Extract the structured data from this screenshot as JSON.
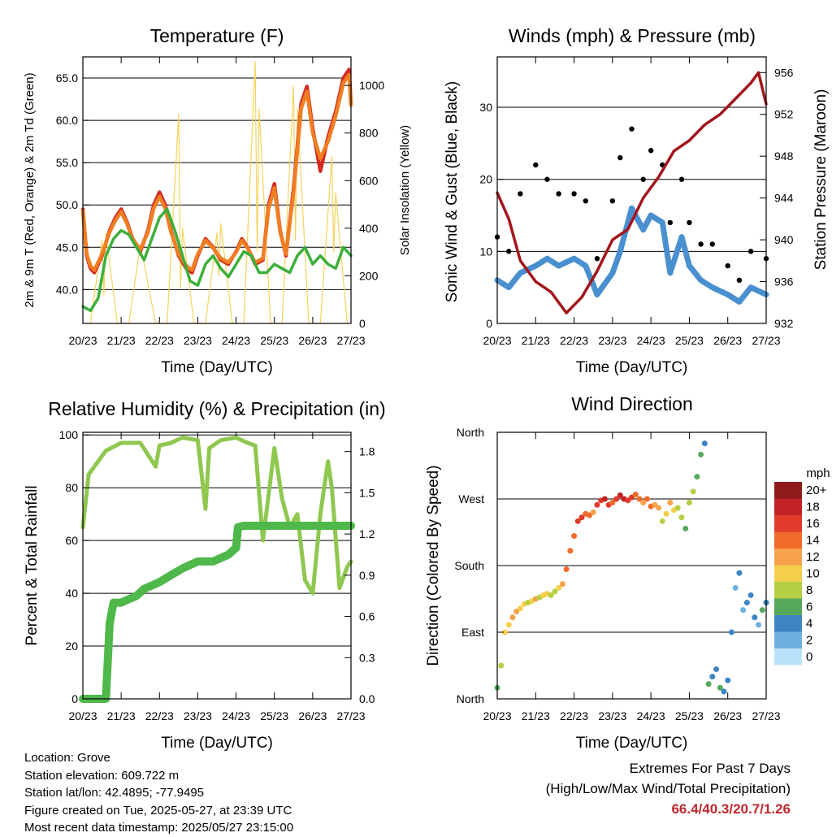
{
  "chart_data": [
    {
      "type": "line",
      "title": "Temperature (F)",
      "xlabel": "Time (Day/UTC)",
      "ylabel": "2m & 9m T (Red, Orange) & 2m Td (Green)",
      "y2label": "Solar Insolation (Yellow)",
      "x_ticks": [
        "20/23",
        "21/23",
        "22/23",
        "23/23",
        "24/23",
        "25/23",
        "26/23",
        "27/23"
      ],
      "y_ticks": [
        "40.0",
        "45.0",
        "50.0",
        "55.0",
        "60.0",
        "65.0"
      ],
      "y2_ticks": [
        "0",
        "200",
        "400",
        "600",
        "800",
        "1000"
      ],
      "ylim": [
        36,
        67.5
      ],
      "y2lim": [
        0,
        1120
      ],
      "grid": true,
      "series": [
        {
          "key": "t2m",
          "color": "#d42a22",
          "x": [
            0,
            0.1,
            0.2,
            0.3,
            0.5,
            0.7,
            0.85,
            1.0,
            1.15,
            1.3,
            1.5,
            1.7,
            1.85,
            2.0,
            2.15,
            2.3,
            2.5,
            2.7,
            2.85,
            3.0,
            3.2,
            3.4,
            3.6,
            3.8,
            4.0,
            4.15,
            4.3,
            4.5,
            4.7,
            4.85,
            5.0,
            5.15,
            5.3,
            5.5,
            5.7,
            5.85,
            6.0,
            6.2,
            6.4,
            6.6,
            6.8,
            6.95,
            7.0
          ],
          "y": [
            49.5,
            44,
            42.5,
            42,
            44,
            47,
            48.5,
            49.5,
            48,
            46,
            44.5,
            47,
            50,
            51.5,
            50,
            47,
            44,
            42.5,
            42,
            44,
            46,
            45,
            43.5,
            43,
            44.5,
            46,
            45,
            43,
            43.5,
            50,
            52.5,
            47,
            44,
            52,
            62,
            64,
            59,
            54,
            58,
            61,
            65,
            66,
            62
          ]
        },
        {
          "key": "t9m",
          "color": "#f07e22",
          "x": [
            0,
            0.1,
            0.2,
            0.3,
            0.5,
            0.7,
            0.85,
            1.0,
            1.15,
            1.3,
            1.5,
            1.7,
            1.85,
            2.0,
            2.15,
            2.3,
            2.5,
            2.7,
            2.85,
            3.0,
            3.2,
            3.4,
            3.6,
            3.8,
            4.0,
            4.15,
            4.3,
            4.5,
            4.7,
            4.85,
            5.0,
            5.15,
            5.3,
            5.5,
            5.7,
            5.85,
            6.0,
            6.2,
            6.4,
            6.6,
            6.8,
            6.95,
            7.0
          ],
          "y": [
            49.3,
            44.2,
            42.8,
            42.3,
            44.2,
            46.8,
            48.2,
            49.2,
            47.8,
            46,
            44.7,
            46.8,
            49.6,
            51,
            49.6,
            46.8,
            44.2,
            42.8,
            42.3,
            44.2,
            45.8,
            44.9,
            43.7,
            43.2,
            44.4,
            45.8,
            44.9,
            43.2,
            43.7,
            49.6,
            52,
            46.8,
            44.2,
            51.5,
            61.4,
            63.4,
            58.5,
            55.5,
            57.5,
            60.5,
            64.4,
            65.4,
            61.8
          ]
        },
        {
          "key": "td2m",
          "color": "#3daf3c",
          "x": [
            0,
            0.2,
            0.4,
            0.6,
            0.8,
            1.0,
            1.2,
            1.4,
            1.6,
            1.8,
            2.0,
            2.2,
            2.4,
            2.6,
            2.8,
            3.0,
            3.2,
            3.4,
            3.6,
            3.8,
            4.0,
            4.2,
            4.4,
            4.6,
            4.8,
            5.0,
            5.2,
            5.4,
            5.6,
            5.8,
            6.0,
            6.2,
            6.4,
            6.6,
            6.8,
            7.0
          ],
          "y": [
            38,
            37.5,
            39,
            44,
            46,
            47,
            46.5,
            45,
            43.5,
            46,
            48.5,
            49.5,
            47,
            44,
            41,
            40.5,
            43,
            44,
            42.5,
            41.5,
            43,
            44.5,
            44,
            42,
            42,
            43,
            42.5,
            42,
            44,
            45,
            43,
            44,
            43,
            42.5,
            45,
            44
          ]
        },
        {
          "key": "solar",
          "color": "#f5d35c",
          "axis": "y2",
          "x": [
            0.2,
            0.5,
            0.55,
            0.6,
            0.9,
            1.2,
            1.5,
            1.6,
            1.9,
            2.2,
            2.5,
            2.55,
            2.6,
            2.9,
            3.2,
            3.5,
            3.55,
            3.6,
            3.9,
            4.2,
            4.5,
            4.55,
            4.6,
            4.9,
            5.2,
            5.5,
            5.55,
            5.6,
            5.9,
            6.2,
            6.5,
            6.55,
            6.6,
            6.9
          ],
          "y": [
            0,
            350,
            120,
            380,
            0,
            0,
            330,
            250,
            0,
            0,
            880,
            150,
            400,
            0,
            0,
            380,
            200,
            420,
            0,
            0,
            1100,
            300,
            900,
            0,
            0,
            1000,
            350,
            900,
            0,
            0,
            700,
            300,
            550,
            0
          ]
        }
      ]
    },
    {
      "type": "scatter",
      "title": "Winds (mph) & Pressure (mb)",
      "xlabel": "Time (Day/UTC)",
      "ylabel": "Sonic Wind & Gust (Blue, Black)",
      "y2label": "Station Pressure (Maroon)",
      "x_ticks": [
        "20/23",
        "21/23",
        "22/23",
        "23/23",
        "24/23",
        "25/23",
        "26/23",
        "27/23"
      ],
      "y_ticks": [
        "0",
        "10",
        "20",
        "30"
      ],
      "y2_ticks": [
        "932",
        "936",
        "940",
        "944",
        "948",
        "952",
        "956"
      ],
      "ylim": [
        0,
        37
      ],
      "y2lim": [
        932,
        957.5
      ],
      "grid": true,
      "series": [
        {
          "key": "wind",
          "color": "#4a90d0",
          "x": [
            0,
            0.3,
            0.6,
            1.0,
            1.3,
            1.6,
            2.0,
            2.3,
            2.6,
            3.0,
            3.2,
            3.5,
            3.8,
            4.0,
            4.3,
            4.5,
            4.8,
            5.0,
            5.3,
            5.6,
            6.0,
            6.3,
            6.6,
            7.0
          ],
          "y": [
            6,
            5,
            7,
            8,
            9,
            8,
            9,
            8,
            4,
            7,
            10,
            16,
            13,
            15,
            14,
            7,
            12,
            8,
            6,
            5,
            4,
            3,
            5,
            4
          ]
        },
        {
          "key": "gust",
          "color": "#000000",
          "x": [
            0,
            0.3,
            0.6,
            1.0,
            1.3,
            1.6,
            2.0,
            2.3,
            2.6,
            3.0,
            3.2,
            3.5,
            3.8,
            4.0,
            4.3,
            4.5,
            4.8,
            5.0,
            5.3,
            5.6,
            6.0,
            6.3,
            6.6,
            7.0
          ],
          "y": [
            12,
            10,
            18,
            22,
            20,
            18,
            18,
            17,
            9,
            17,
            23,
            27,
            20,
            24,
            22,
            14,
            20,
            14,
            11,
            11,
            8,
            6,
            10,
            9
          ]
        },
        {
          "key": "pressure",
          "color": "#a3161b",
          "axis": "y2",
          "x": [
            0,
            0.3,
            0.6,
            1.0,
            1.4,
            1.8,
            2.2,
            2.6,
            3.0,
            3.4,
            3.8,
            4.2,
            4.6,
            5.0,
            5.4,
            5.8,
            6.2,
            6.6,
            6.8,
            7.0
          ],
          "y": [
            944.5,
            942,
            938,
            936,
            935,
            933,
            934.5,
            937,
            940,
            941,
            944,
            946,
            948.5,
            949.5,
            951,
            952,
            953.5,
            955,
            956,
            953
          ]
        }
      ]
    },
    {
      "type": "line",
      "title": "Relative Humidity (%) & Precipitation (in)",
      "xlabel": "Time (Day/UTC)",
      "ylabel": "Percent & Total Rainfall",
      "x_ticks": [
        "20/23",
        "21/23",
        "22/23",
        "23/23",
        "24/23",
        "25/23",
        "26/23",
        "27/23"
      ],
      "y_ticks": [
        "0",
        "20",
        "40",
        "60",
        "80",
        "100"
      ],
      "y2_ticks": [
        "0.0",
        "0.3",
        "0.6",
        "0.9",
        "1.2",
        "1.5",
        "1.8"
      ],
      "ylim": [
        0,
        101
      ],
      "y2lim": [
        0,
        1.94
      ],
      "grid": true,
      "series": [
        {
          "key": "rh",
          "color": "#8fc74f",
          "x": [
            0,
            0.15,
            0.3,
            0.6,
            1.0,
            1.5,
            1.9,
            2.0,
            2.3,
            2.6,
            3.0,
            3.2,
            3.3,
            3.6,
            4.0,
            4.3,
            4.5,
            4.7,
            5.0,
            5.2,
            5.4,
            5.6,
            5.8,
            6.0,
            6.2,
            6.4,
            6.5,
            6.7,
            6.9,
            7.0
          ],
          "y": [
            65,
            85,
            88,
            94,
            97,
            97,
            88,
            96,
            97,
            99,
            98,
            72,
            95,
            98,
            99,
            97,
            96,
            60,
            95,
            76,
            65,
            70,
            45,
            40,
            70,
            90,
            80,
            42,
            50,
            52
          ]
        },
        {
          "key": "precip",
          "color": "#4fb84a",
          "axis": "y2",
          "x": [
            0,
            0.3,
            0.6,
            0.7,
            0.8,
            1.0,
            1.4,
            1.6,
            2.0,
            2.3,
            2.6,
            3.0,
            3.4,
            3.8,
            4.0,
            4.05,
            4.2,
            5.0,
            6.0,
            7.0
          ],
          "y": [
            0,
            0,
            0,
            0.55,
            0.7,
            0.7,
            0.75,
            0.8,
            0.85,
            0.9,
            0.95,
            1.0,
            1.0,
            1.05,
            1.1,
            1.25,
            1.26,
            1.26,
            1.26,
            1.26
          ]
        }
      ]
    },
    {
      "type": "scatter",
      "title": "Wind Direction",
      "xlabel": "Time (Day/UTC)",
      "ylabel": "Direction (Colored By Speed)",
      "x_ticks": [
        "20/23",
        "21/23",
        "22/23",
        "23/23",
        "24/23",
        "25/23",
        "26/23",
        "27/23"
      ],
      "y_ticks": [
        "North",
        "East",
        "South",
        "West",
        "North"
      ],
      "ylim": [
        0,
        360
      ],
      "grid": true,
      "legend_title": "mph",
      "legend_labels": [
        "20+",
        "18",
        "16",
        "14",
        "12",
        "10",
        "8",
        "6",
        "4",
        "2",
        "0"
      ],
      "legend_colors": [
        "#8e1a1a",
        "#c22126",
        "#e23a2a",
        "#f06a2a",
        "#f6a24a",
        "#f4cf4a",
        "#b5cf43",
        "#56a95c",
        "#3d84c2",
        "#6eb0e0",
        "#b8e2f7"
      ],
      "points": {
        "x": [
          0,
          0.1,
          0.2,
          0.3,
          0.4,
          0.5,
          0.6,
          0.7,
          0.8,
          0.9,
          1.0,
          1.1,
          1.2,
          1.3,
          1.4,
          1.5,
          1.6,
          1.7,
          1.8,
          1.9,
          2.0,
          2.1,
          2.2,
          2.3,
          2.4,
          2.5,
          2.6,
          2.7,
          2.8,
          2.9,
          3.0,
          3.1,
          3.2,
          3.3,
          3.4,
          3.5,
          3.6,
          3.7,
          3.8,
          3.9,
          4.0,
          4.1,
          4.2,
          4.3,
          4.4,
          4.5,
          4.6,
          4.7,
          4.8,
          4.9,
          5.0,
          5.1,
          5.2,
          5.3,
          5.4,
          5.5,
          5.6,
          5.7,
          5.8,
          5.9,
          6.0,
          6.1,
          6.2,
          6.3,
          6.4,
          6.5,
          6.6,
          6.7,
          6.8,
          6.9,
          7.0
        ],
        "y": [
          15,
          45,
          90,
          100,
          110,
          118,
          122,
          128,
          130,
          132,
          135,
          137,
          140,
          142,
          140,
          145,
          150,
          155,
          175,
          200,
          220,
          240,
          245,
          250,
          248,
          252,
          262,
          268,
          270,
          262,
          265,
          270,
          275,
          270,
          268,
          272,
          276,
          270,
          265,
          270,
          260,
          262,
          258,
          240,
          250,
          265,
          255,
          258,
          245,
          230,
          265,
          280,
          300,
          330,
          345,
          20,
          30,
          40,
          15,
          10,
          25,
          90,
          150,
          170,
          120,
          130,
          140,
          110,
          100,
          120,
          130
        ],
        "s": [
          6,
          8,
          10,
          9,
          11,
          12,
          10,
          9,
          8,
          10,
          11,
          8,
          9,
          10,
          7,
          8,
          9,
          12,
          14,
          13,
          14,
          15,
          16,
          14,
          13,
          12,
          15,
          16,
          17,
          15,
          14,
          16,
          18,
          17,
          15,
          16,
          14,
          13,
          12,
          14,
          13,
          12,
          11,
          8,
          10,
          12,
          9,
          8,
          7,
          6,
          7,
          8,
          6,
          5,
          4,
          5,
          4,
          3,
          6,
          4,
          3,
          3,
          2,
          3,
          2,
          3,
          4,
          3,
          2,
          5,
          4
        ]
      }
    }
  ],
  "info": {
    "location": "Location: Grove",
    "elevation": "Station elevation: 609.722 m",
    "latlon": "Station lat/lon: 42.4895; -77.9495",
    "created": "Figure created on Tue, 2025-05-27, at 23:39 UTC",
    "recent": "Most recent data timestamp: 2025/05/27 23:15:00"
  },
  "extremes": {
    "title": "Extremes For Past 7 Days",
    "subtitle": "(High/Low/Max Wind/Total Precipitation)",
    "values": "66.4/40.3/20.7/1.26"
  }
}
